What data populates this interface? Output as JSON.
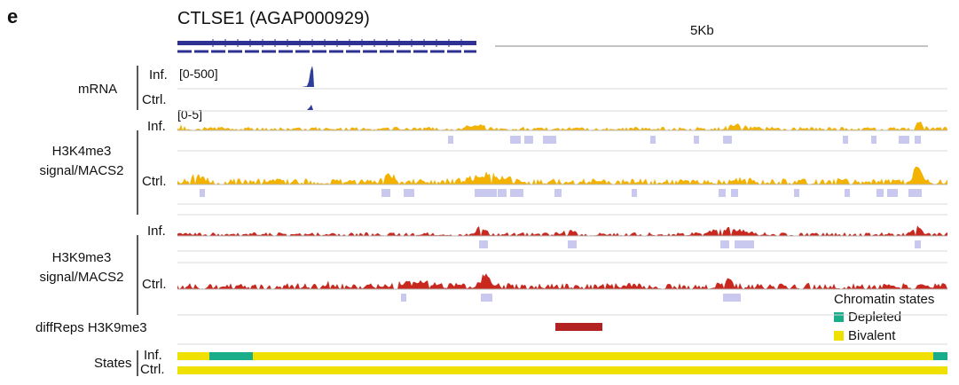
{
  "panel_label": "e",
  "gene": {
    "title": "CTLSE1 (AGAP000929)",
    "color": "#2e3192"
  },
  "scale_label": "5Kb",
  "rows": {
    "mrna": {
      "label": "mRNA",
      "range": "[0-500]",
      "inf": "Inf.",
      "ctrl": "Ctrl.",
      "color": "#2e3c9a"
    },
    "h3k4me3": {
      "label_line1": "H3K4me3",
      "label_line2": "signal/MACS2",
      "range": "[0-5]",
      "inf": "Inf.",
      "ctrl": "Ctrl.",
      "color": "#f3b200",
      "peak_color": "#c9c9ef"
    },
    "h3k9me3": {
      "label_line1": "H3K9me3",
      "label_line2": "signal/MACS2",
      "inf": "Inf.",
      "ctrl": "Ctrl.",
      "color": "#c8281e",
      "peak_color": "#c9c9ef"
    },
    "diffreps": {
      "label": "diffReps H3K9me3",
      "color": "#b22222"
    },
    "states": {
      "label": "States",
      "inf": "Inf.",
      "ctrl": "Ctrl."
    }
  },
  "legend": {
    "title": "Chromatin states",
    "items": [
      {
        "label": "Depleted",
        "color": "#1aad8a"
      },
      {
        "label": "Bivalent",
        "color": "#f0e000"
      }
    ]
  },
  "state_colors": {
    "bivalent": "#f0e000",
    "depleted": "#1aad8a"
  }
}
